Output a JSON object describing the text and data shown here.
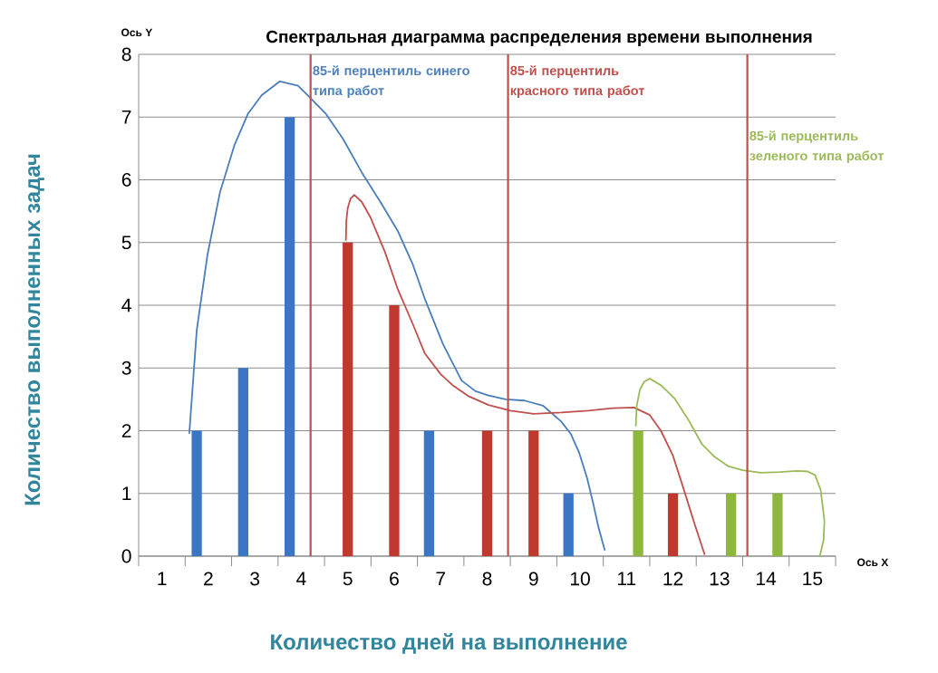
{
  "chart_data": {
    "type": "bar",
    "title": "Спектральная диаграмма распределения времени выполнения",
    "xlabel": "Количество дней на выполнение",
    "ylabel": "Количество выполненных задач",
    "annotations": [
      "Ось Y",
      "Ось X"
    ],
    "xlim": [
      0.5,
      15.5
    ],
    "xticks": [
      1,
      2,
      3,
      4,
      5,
      6,
      7,
      8,
      9,
      10,
      11,
      12,
      13,
      14,
      15
    ],
    "ylim": [
      0,
      8
    ],
    "yticks": [
      0,
      1,
      2,
      3,
      4,
      5,
      6,
      7,
      8
    ],
    "grid": "y",
    "series": [
      {
        "color": "#3a76c4",
        "x": [
          2,
          3,
          4,
          7,
          10
        ],
        "values": [
          2,
          3,
          7,
          2,
          1
        ]
      },
      {
        "color": "#c0392f",
        "x": [
          5,
          6,
          8,
          9,
          12
        ],
        "values": [
          5,
          4,
          2,
          2,
          1
        ]
      },
      {
        "color": "#8db83d",
        "x": [
          11,
          13,
          14
        ],
        "values": [
          2,
          1,
          1
        ]
      },
      {
        "type": "line",
        "color": "#4a7ebb",
        "x": [
          1.59,
          1.75,
          1.98,
          2.25,
          2.56,
          2.85,
          3.15,
          3.54,
          3.93,
          4.2,
          4.52,
          4.9,
          5.3,
          5.7,
          6.08,
          6.4,
          6.66,
          7.05,
          7.45,
          7.75,
          8.03,
          8.4,
          8.81,
          9.2,
          9.59,
          9.8,
          9.98,
          10.15,
          10.28,
          10.4,
          10.53
        ],
        "values": [
          1.96,
          3.6,
          4.8,
          5.8,
          6.55,
          7.05,
          7.35,
          7.57,
          7.5,
          7.3,
          7.06,
          6.65,
          6.12,
          5.65,
          5.18,
          4.65,
          4.1,
          3.38,
          2.8,
          2.63,
          2.56,
          2.5,
          2.48,
          2.4,
          2.15,
          1.95,
          1.65,
          1.25,
          0.85,
          0.45,
          0.1
        ]
      },
      {
        "type": "line",
        "color": "#c0504d",
        "x": [
          4.96,
          4.97,
          5.0,
          5.06,
          5.14,
          5.3,
          5.49,
          5.8,
          6.08,
          6.4,
          6.66,
          7.0,
          7.25,
          7.6,
          8.03,
          8.5,
          9.0,
          9.6,
          10.18,
          10.7,
          11.16,
          11.5,
          11.74,
          12.0,
          12.23,
          12.45,
          12.68
        ],
        "values": [
          5.04,
          5.35,
          5.55,
          5.7,
          5.76,
          5.65,
          5.4,
          4.85,
          4.25,
          3.7,
          3.23,
          2.9,
          2.73,
          2.55,
          2.41,
          2.32,
          2.27,
          2.29,
          2.32,
          2.36,
          2.37,
          2.25,
          2.0,
          1.6,
          1.07,
          0.55,
          0.03
        ]
      },
      {
        "type": "line",
        "color": "#9bbb59",
        "x": [
          11.2,
          11.22,
          11.29,
          11.38,
          11.5,
          11.75,
          12.04,
          12.35,
          12.62,
          12.9,
          13.2,
          13.5,
          13.89,
          14.3,
          14.67,
          14.9,
          15.06,
          15.18,
          15.26,
          15.24,
          15.16
        ],
        "values": [
          2.08,
          2.4,
          2.66,
          2.78,
          2.83,
          2.72,
          2.51,
          2.15,
          1.79,
          1.58,
          1.43,
          1.37,
          1.33,
          1.34,
          1.36,
          1.35,
          1.29,
          1.05,
          0.56,
          0.25,
          0.0
        ]
      }
    ],
    "ref_lines": [
      {
        "axis": "x",
        "value": 4.2,
        "label": "85-й перцентиль синего типа работ",
        "color": "#c0504d"
      },
      {
        "axis": "x",
        "value": 8.45,
        "label": "85-й перцентиль красного типа работ",
        "color": "#c0504d"
      },
      {
        "axis": "x",
        "value": 13.6,
        "label": "85-й перцентиль зеленого типа работ",
        "color": "#c0504d"
      }
    ]
  }
}
